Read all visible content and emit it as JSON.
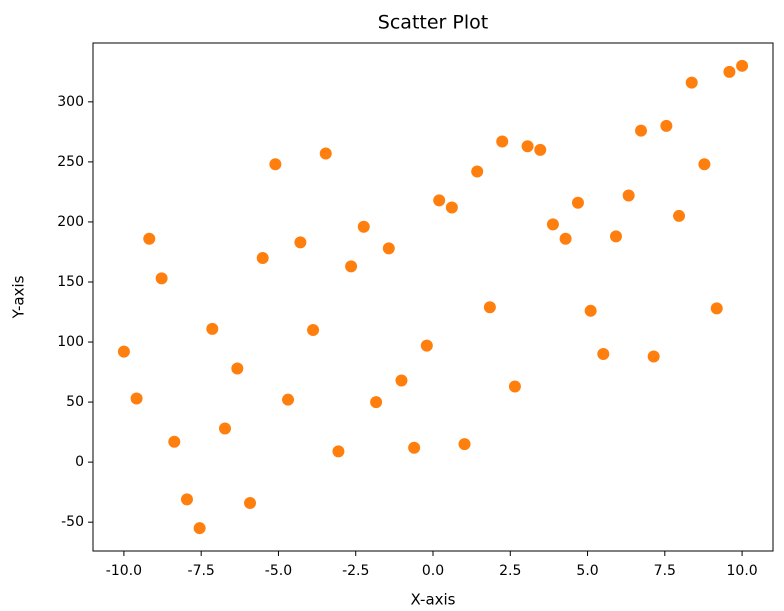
{
  "chart_data": {
    "type": "scatter",
    "title": "Scatter Plot",
    "x_label": "X-axis",
    "y_label": "Y-axis",
    "color": "#ff7f0e",
    "grid": false,
    "x": [
      -10,
      -9.59,
      -9.18,
      -8.78,
      -8.37,
      -7.96,
      -7.55,
      -7.14,
      -6.73,
      -6.33,
      -5.92,
      -5.51,
      -5.1,
      -4.69,
      -4.29,
      -3.88,
      -3.47,
      -3.06,
      -2.65,
      -2.24,
      -1.84,
      -1.43,
      -1.02,
      -0.61,
      -0.2,
      0.2,
      0.61,
      1.02,
      1.43,
      1.84,
      2.24,
      2.65,
      3.06,
      3.47,
      3.88,
      4.29,
      4.69,
      5.1,
      5.51,
      5.92,
      6.33,
      6.73,
      7.14,
      7.55,
      7.96,
      8.37,
      8.78,
      9.18,
      9.59,
      10
    ],
    "values": [
      92,
      53,
      186,
      153,
      17,
      -31,
      -55,
      111,
      28,
      78,
      -34,
      170,
      248,
      52,
      183,
      110,
      257,
      9,
      163,
      196,
      50,
      178,
      68,
      12,
      97,
      218,
      212,
      15,
      242,
      129,
      267,
      63,
      263,
      260,
      198,
      186,
      216,
      126,
      90,
      188,
      222,
      276,
      88,
      280,
      205,
      316,
      248,
      128,
      325,
      330
    ],
    "xlim": [
      -11,
      11
    ],
    "ylim": [
      -74,
      349
    ],
    "xticks": [
      {
        "value": -10,
        "label": "-10.0"
      },
      -7.5,
      {
        "value": -5,
        "label": "-5.0"
      },
      -2.5,
      {
        "value": 0,
        "label": "0.0"
      },
      2.5,
      {
        "value": 5,
        "label": "5.0"
      },
      7.5,
      {
        "value": 10,
        "label": "10.0"
      }
    ],
    "yticks": [
      -50,
      0,
      50,
      100,
      150,
      200,
      250,
      300
    ]
  }
}
